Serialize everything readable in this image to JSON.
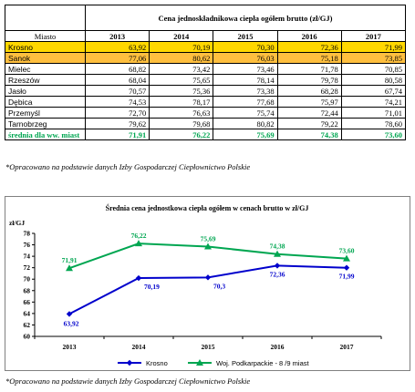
{
  "table": {
    "title": "Cena jednoskładnikowa ciepła ogółem brutto (zł/GJ)",
    "city_header": "Miasto",
    "years": [
      "2013",
      "2014",
      "2015",
      "2016",
      "2017"
    ],
    "rows": [
      {
        "city": "Krosno",
        "values": [
          "63,92",
          "70,19",
          "70,30",
          "72,36",
          "71,99"
        ],
        "highlight": "#ffd700"
      },
      {
        "city": "Sanok",
        "values": [
          "77,06",
          "80,62",
          "76,03",
          "75,18",
          "73,85"
        ],
        "highlight": "#ffbf3f"
      },
      {
        "city": "Mielec",
        "values": [
          "68,82",
          "73,42",
          "73,46",
          "71,78",
          "70,85"
        ]
      },
      {
        "city": "Rzeszów",
        "values": [
          "68,04",
          "75,65",
          "78,14",
          "79,78",
          "80,58"
        ]
      },
      {
        "city": "Jasło",
        "values": [
          "70,57",
          "75,36",
          "73,38",
          "68,28",
          "67,74"
        ]
      },
      {
        "city": "Dębica",
        "values": [
          "74,53",
          "78,17",
          "77,68",
          "75,97",
          "74,21"
        ]
      },
      {
        "city": "Przemyśl",
        "values": [
          "72,70",
          "76,63",
          "75,74",
          "72,44",
          "71,01"
        ]
      },
      {
        "city": "Tarnobrzeg",
        "values": [
          "79,62",
          "79,68",
          "80,82",
          "79,22",
          "78,60"
        ]
      }
    ],
    "avg_row": {
      "city": "średnia dla ww. miast",
      "values": [
        "71,91",
        "76,22",
        "75,69",
        "74,38",
        "73,60"
      ],
      "color": "#00a651"
    }
  },
  "note_top": "*Opracowano na podstawie danych Izby Gospodarczej Ciepłownictwo Polskie",
  "note_bottom": "*Opracowano na podstawie danych Izby Gospodarczej Ciepłownictwo Polskie",
  "chart_data": {
    "type": "line",
    "title": "Średnia  cena jednostkowa ciepła ogółem   w cenach brutto   w zł/GJ",
    "ylabel": "zł/GJ",
    "x": [
      "2013",
      "2014",
      "2015",
      "2016",
      "2017"
    ],
    "ylim": [
      60,
      78
    ],
    "yticks": [
      60,
      62,
      64,
      66,
      68,
      70,
      72,
      74,
      76,
      78
    ],
    "grid": false,
    "legend_placement": "bottom",
    "series": [
      {
        "name": "Krosno",
        "color": "#0000cc",
        "marker": "diamond",
        "values": [
          63.92,
          70.19,
          70.3,
          72.36,
          71.99
        ],
        "labels": [
          "63,92",
          "70,19",
          "70,3",
          "72,36",
          "71,99"
        ]
      },
      {
        "name": "Woj. Podkarpackie  - 8 /9 miast",
        "color": "#00a651",
        "marker": "triangle",
        "values": [
          71.91,
          76.22,
          75.69,
          74.38,
          73.6
        ],
        "labels": [
          "71,91",
          "76,22",
          "75,69",
          "74,38",
          "73,60"
        ]
      }
    ]
  }
}
